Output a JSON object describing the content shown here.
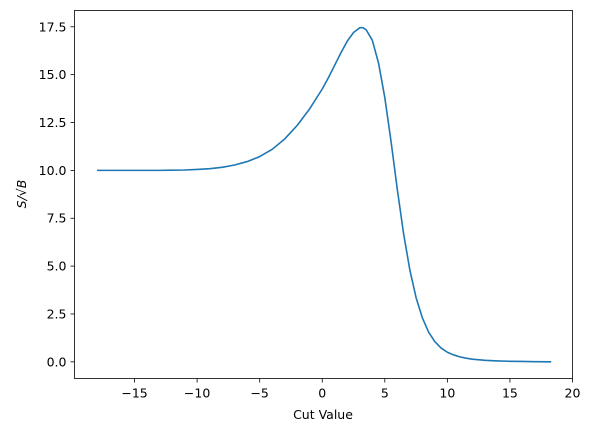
{
  "chart_data": {
    "type": "line",
    "xlabel": "Cut Value",
    "ylabel": "S/√B",
    "xlim": [
      -19.8,
      20
    ],
    "ylim": [
      -0.87,
      18.35
    ],
    "xticks": [
      "−15",
      "−10",
      "−5",
      "0",
      "5",
      "10",
      "15",
      "20"
    ],
    "yticks": [
      "0.0",
      "2.5",
      "5.0",
      "7.5",
      "10.0",
      "12.5",
      "15.0",
      "17.5"
    ],
    "line_color": "#1f77b4",
    "grid": false,
    "series": [
      {
        "x": [
          -18,
          -17,
          -16,
          -15,
          -14,
          -13,
          -12,
          -11,
          -10,
          -9,
          -8,
          -7,
          -6,
          -5,
          -4,
          -3,
          -2,
          -1,
          0,
          0.5,
          1,
          1.5,
          2,
          2.5,
          3,
          3.25,
          3.5,
          4,
          4.5,
          5,
          5.5,
          6,
          6.5,
          7,
          7.5,
          8,
          8.5,
          9,
          9.5,
          10,
          10.5,
          11,
          11.5,
          12,
          13,
          14,
          15,
          16,
          17,
          18.3
        ],
        "y": [
          10.0,
          10.0,
          10.0,
          10.0,
          10.0,
          10.0,
          10.01,
          10.02,
          10.05,
          10.09,
          10.16,
          10.28,
          10.46,
          10.72,
          11.1,
          11.64,
          12.35,
          13.22,
          14.25,
          14.85,
          15.5,
          16.15,
          16.75,
          17.2,
          17.45,
          17.45,
          17.35,
          16.8,
          15.6,
          13.8,
          11.5,
          9.0,
          6.7,
          4.8,
          3.35,
          2.3,
          1.55,
          1.05,
          0.72,
          0.5,
          0.36,
          0.26,
          0.19,
          0.14,
          0.08,
          0.05,
          0.03,
          0.02,
          0.01,
          0.0
        ]
      }
    ]
  }
}
